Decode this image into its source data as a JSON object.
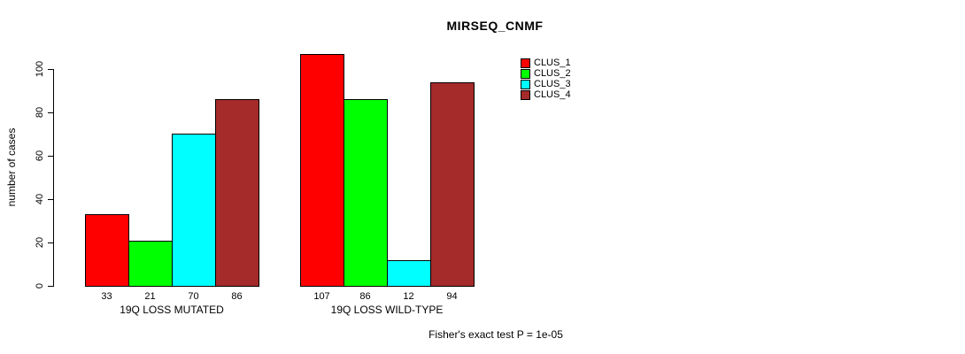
{
  "chart": {
    "title": "MIRSEQ_CNMF",
    "y_axis_label": "number of cases",
    "footnote": "Fisher's exact test P = 1e-05"
  },
  "chart_data": {
    "type": "bar",
    "title": "MIRSEQ_CNMF",
    "xlabel": "",
    "ylabel": "number of cases",
    "categories": [
      "19Q LOSS MUTATED",
      "19Q LOSS WILD-TYPE"
    ],
    "series": [
      {
        "name": "CLUS_1",
        "color": "#FF0000",
        "values": [
          33,
          107
        ]
      },
      {
        "name": "CLUS_2",
        "color": "#00FF00",
        "values": [
          21,
          86
        ]
      },
      {
        "name": "CLUS_3",
        "color": "#00FFFF",
        "values": [
          70,
          12
        ]
      },
      {
        "name": "CLUS_4",
        "color": "#A52A2A",
        "values": [
          86,
          94
        ]
      }
    ],
    "bar_value_labels": [
      [
        "33",
        "21",
        "70",
        "86"
      ],
      [
        "107",
        "86",
        "12",
        "94"
      ]
    ],
    "yticks": [
      0,
      20,
      40,
      60,
      80,
      100
    ],
    "ylim": [
      0,
      107
    ],
    "grid": false,
    "legend_position": "top-right",
    "legend_entries": [
      "CLUS_1",
      "CLUS_2",
      "CLUS_3",
      "CLUS_4"
    ],
    "annotation": "Fisher's exact test P = 1e-05"
  }
}
